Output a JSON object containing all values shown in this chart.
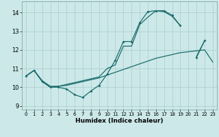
{
  "xlabel": "Humidex (Indice chaleur)",
  "background_color": "#cce8e8",
  "grid_color": "#aacccc",
  "line_color": "#1a6b6b",
  "xlim": [
    -0.5,
    23.5
  ],
  "ylim": [
    8.8,
    14.6
  ],
  "yticks": [
    9,
    10,
    11,
    12,
    13,
    14
  ],
  "xticks": [
    0,
    1,
    2,
    3,
    4,
    5,
    6,
    7,
    8,
    9,
    10,
    11,
    12,
    13,
    14,
    15,
    16,
    17,
    18,
    19,
    20,
    21,
    22,
    23
  ],
  "line1_y": [
    10.6,
    10.9,
    10.3,
    10.0,
    10.0,
    9.9,
    9.6,
    9.45,
    9.8,
    10.1,
    10.7,
    11.45,
    12.45,
    12.45,
    13.45,
    14.05,
    14.1,
    14.1,
    13.85,
    13.3,
    null,
    11.6,
    12.5,
    null
  ],
  "line2_y": [
    10.6,
    10.9,
    10.3,
    10.0,
    10.05,
    10.1,
    10.2,
    10.3,
    10.4,
    10.5,
    10.65,
    10.8,
    10.95,
    11.1,
    11.25,
    11.4,
    11.55,
    11.65,
    11.75,
    11.85,
    11.9,
    11.95,
    12.0,
    11.35
  ],
  "line3_y": [
    10.6,
    10.9,
    10.35,
    10.05,
    10.05,
    10.15,
    10.25,
    10.35,
    10.45,
    10.55,
    11.0,
    11.2,
    12.2,
    12.2,
    13.35,
    13.75,
    14.1,
    14.05,
    13.8,
    13.3,
    null,
    11.65,
    12.5,
    null
  ]
}
